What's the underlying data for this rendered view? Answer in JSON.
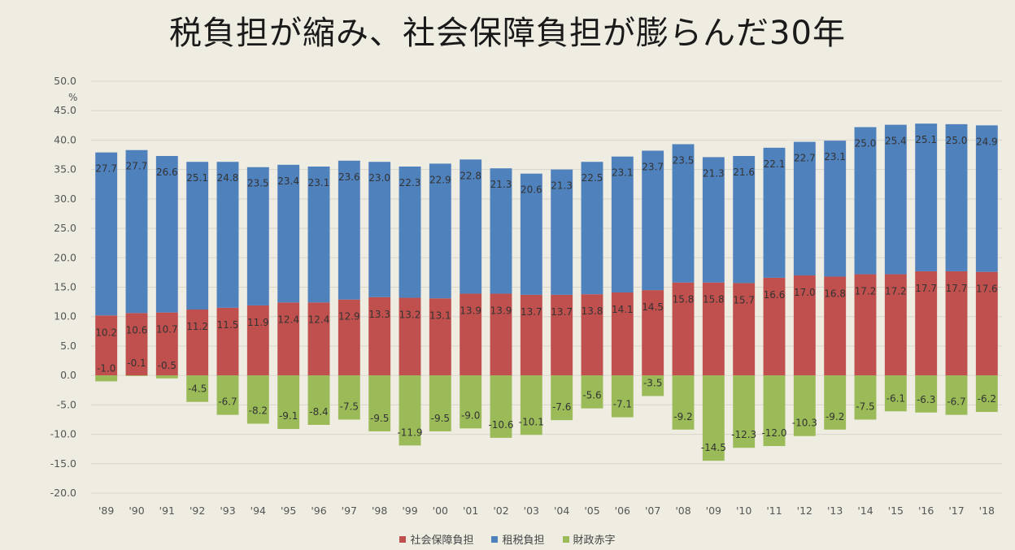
{
  "title": "税負担が縮み、社会保障負担が膨らんだ30年",
  "chart_data": {
    "type": "bar",
    "stacked": true,
    "title": "税負担が縮み、社会保障負担が膨らんだ30年",
    "ylabel_unit": "%",
    "ylim": [
      -20,
      50
    ],
    "ytick_step": 5,
    "grid": true,
    "legend_position": "bottom",
    "categories": [
      "'89",
      "'90",
      "'91",
      "'92",
      "'93",
      "'94",
      "'95",
      "'96",
      "'97",
      "'98",
      "'99",
      "'00",
      "'01",
      "'02",
      "'03",
      "'04",
      "'05",
      "'06",
      "'07",
      "'08",
      "'09",
      "'10",
      "'11",
      "'12",
      "'13",
      "'14",
      "'15",
      "'16",
      "'17",
      "'18"
    ],
    "series": [
      {
        "name": "社会保障負担",
        "color": "#c0504d",
        "values": [
          10.2,
          10.6,
          10.7,
          11.2,
          11.5,
          11.9,
          12.4,
          12.4,
          12.9,
          13.3,
          13.2,
          13.1,
          13.9,
          13.9,
          13.7,
          13.7,
          13.8,
          14.1,
          14.5,
          15.8,
          15.8,
          15.7,
          16.6,
          17.0,
          16.8,
          17.2,
          17.2,
          17.7,
          17.7,
          17.6
        ]
      },
      {
        "name": "租税負担",
        "color": "#4f81bd",
        "values": [
          27.7,
          27.7,
          26.6,
          25.1,
          24.8,
          23.5,
          23.4,
          23.1,
          23.6,
          23.0,
          22.3,
          22.9,
          22.8,
          21.3,
          20.6,
          21.3,
          22.5,
          23.1,
          23.7,
          23.5,
          21.3,
          21.6,
          22.1,
          22.7,
          23.1,
          25.0,
          25.4,
          25.1,
          25.0,
          24.9
        ]
      },
      {
        "name": "財政赤字",
        "color": "#9bbb59",
        "values": [
          -1.0,
          -0.1,
          -0.5,
          -4.5,
          -6.7,
          -8.2,
          -9.1,
          -8.4,
          -7.5,
          -9.5,
          -11.9,
          -9.5,
          -9.0,
          -10.6,
          -10.1,
          -7.6,
          -5.6,
          -7.1,
          -3.5,
          -9.2,
          -14.5,
          -12.3,
          -12.0,
          -10.3,
          -9.2,
          -7.5,
          -6.1,
          -6.3,
          -6.7,
          -6.2
        ]
      }
    ],
    "legend": [
      "社会保障負担",
      "租税負担",
      "財政赤字"
    ]
  }
}
